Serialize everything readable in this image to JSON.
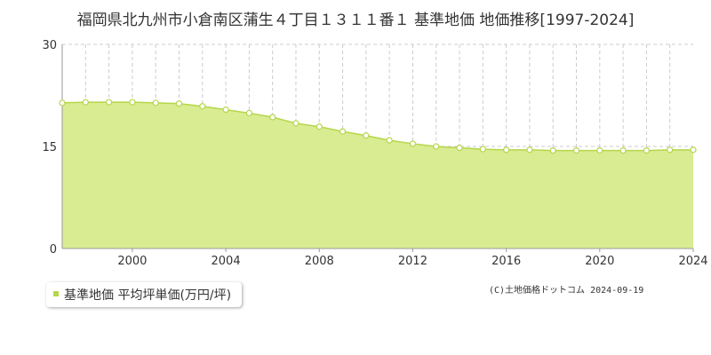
{
  "chart_data": {
    "type": "area",
    "title": "福岡県北九州市小倉南区蒲生４丁目１３１１番１ 基準地価 地価推移[1997-2024]",
    "x": [
      1997,
      1998,
      1999,
      2000,
      2001,
      2002,
      2003,
      2004,
      2005,
      2006,
      2007,
      2008,
      2009,
      2010,
      2011,
      2012,
      2013,
      2014,
      2015,
      2016,
      2017,
      2018,
      2019,
      2020,
      2021,
      2022,
      2023,
      2024
    ],
    "series": [
      {
        "name": "基準地価 平均坪単価(万円/坪)",
        "values": [
          21.4,
          21.5,
          21.5,
          21.5,
          21.4,
          21.3,
          20.9,
          20.4,
          19.9,
          19.3,
          18.4,
          17.9,
          17.2,
          16.6,
          15.9,
          15.4,
          15.0,
          14.8,
          14.6,
          14.5,
          14.5,
          14.4,
          14.4,
          14.4,
          14.4,
          14.4,
          14.5,
          14.5
        ]
      }
    ],
    "x_tick_labels": [
      "2000",
      "2004",
      "2008",
      "2012",
      "2016",
      "2020",
      "2024"
    ],
    "y_tick_labels": [
      "0",
      "15",
      "30"
    ],
    "ylim": [
      0,
      30
    ],
    "xlim": [
      1997,
      2024
    ],
    "grid": true,
    "legend_position": "bottom-left",
    "colors": {
      "fill": "#d9ec91",
      "line": "#b5d64b",
      "marker_fill": "#ffffff",
      "marker_stroke": "#b5d64b",
      "grid": "#cccccc",
      "axis": "#999999",
      "legend_marker": "#b5d64b"
    }
  },
  "copyright": "(C)土地価格ドットコム 2024-09-19"
}
